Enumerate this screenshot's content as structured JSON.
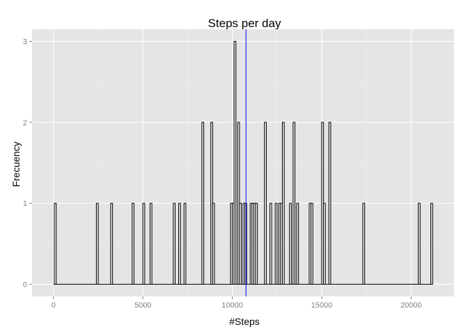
{
  "chart_data": {
    "type": "bar",
    "title": "Steps per day",
    "xlabel": "#Steps",
    "ylabel": "Frecuency",
    "xlim": [
      -1200,
      22400
    ],
    "ylim": [
      -0.15,
      3.15
    ],
    "bin_width": 106,
    "x_ticks": [
      0,
      5000,
      10000,
      15000,
      20000
    ],
    "x_tick_labels": [
      "0",
      "5000",
      "10000",
      "15000",
      "20000"
    ],
    "y_ticks": [
      0,
      1,
      2,
      3
    ],
    "y_tick_labels": [
      "0",
      "1",
      "2",
      "3"
    ],
    "grid": true,
    "colors": {
      "panel": "#e5e5e5",
      "grid_major": "#ffffff",
      "grid_minor": "#f2f2f2",
      "bar_fill": "#e5e5e5",
      "bar_stroke": "#000000",
      "mean_line": "#0000ff"
    },
    "histogram_range": [
      0,
      21194
    ],
    "bins": [
      {
        "x": 100,
        "count": 1
      },
      {
        "x": 2450,
        "count": 1
      },
      {
        "x": 3250,
        "count": 1
      },
      {
        "x": 4450,
        "count": 1
      },
      {
        "x": 5050,
        "count": 1
      },
      {
        "x": 5450,
        "count": 1
      },
      {
        "x": 6750,
        "count": 1
      },
      {
        "x": 7050,
        "count": 1
      },
      {
        "x": 7350,
        "count": 1
      },
      {
        "x": 8350,
        "count": 2
      },
      {
        "x": 8850,
        "count": 2
      },
      {
        "x": 8950,
        "count": 1
      },
      {
        "x": 9950,
        "count": 1
      },
      {
        "x": 10050,
        "count": 1
      },
      {
        "x": 10150,
        "count": 3
      },
      {
        "x": 10350,
        "count": 2
      },
      {
        "x": 10450,
        "count": 1
      },
      {
        "x": 10650,
        "count": 1
      },
      {
        "x": 10750,
        "count": 1
      },
      {
        "x": 11050,
        "count": 1
      },
      {
        "x": 11150,
        "count": 1
      },
      {
        "x": 11250,
        "count": 1
      },
      {
        "x": 11350,
        "count": 1
      },
      {
        "x": 11850,
        "count": 2
      },
      {
        "x": 12150,
        "count": 1
      },
      {
        "x": 12450,
        "count": 1
      },
      {
        "x": 12650,
        "count": 1
      },
      {
        "x": 12750,
        "count": 1
      },
      {
        "x": 12850,
        "count": 2
      },
      {
        "x": 13250,
        "count": 1
      },
      {
        "x": 13450,
        "count": 2
      },
      {
        "x": 13650,
        "count": 1
      },
      {
        "x": 14350,
        "count": 1
      },
      {
        "x": 14450,
        "count": 1
      },
      {
        "x": 15050,
        "count": 2
      },
      {
        "x": 15150,
        "count": 1
      },
      {
        "x": 15450,
        "count": 2
      },
      {
        "x": 17350,
        "count": 1
      },
      {
        "x": 20450,
        "count": 1
      },
      {
        "x": 21150,
        "count": 1
      }
    ],
    "reference_line": {
      "x": 10766,
      "orientation": "vertical",
      "color": "#0000ff"
    }
  }
}
